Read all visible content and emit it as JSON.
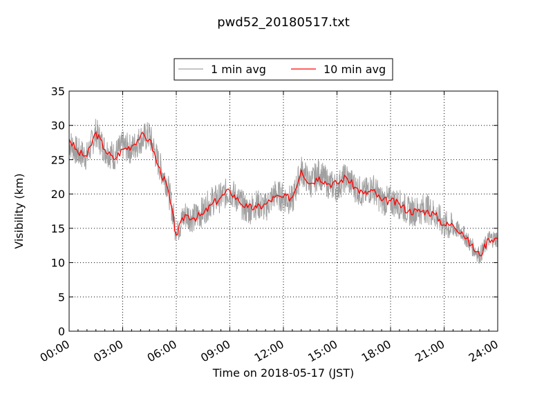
{
  "chart_data": {
    "type": "line",
    "title": "pwd52_20180517.txt",
    "xlabel": "Time on 2018-05-17 (JST)",
    "ylabel": "Visibility (km)",
    "xlim": [
      "00:00",
      "24:00"
    ],
    "ylim": [
      0,
      35
    ],
    "grid": true,
    "legend_position": "top-center",
    "x_ticks": [
      "00:00",
      "03:00",
      "06:00",
      "09:00",
      "12:00",
      "15:00",
      "18:00",
      "21:00",
      "24:00"
    ],
    "y_ticks": [
      "0",
      "5",
      "10",
      "15",
      "20",
      "25",
      "30",
      "35"
    ],
    "x": [
      "00:00",
      "00:30",
      "01:00",
      "01:30",
      "02:00",
      "02:30",
      "03:00",
      "03:30",
      "04:00",
      "04:30",
      "05:00",
      "05:30",
      "06:00",
      "06:30",
      "07:00",
      "07:30",
      "08:00",
      "08:30",
      "09:00",
      "09:30",
      "10:00",
      "10:30",
      "11:00",
      "11:30",
      "12:00",
      "12:30",
      "13:00",
      "13:30",
      "14:00",
      "14:30",
      "15:00",
      "15:30",
      "16:00",
      "16:30",
      "17:00",
      "17:30",
      "18:00",
      "18:30",
      "19:00",
      "19:30",
      "20:00",
      "20:30",
      "21:00",
      "21:30",
      "22:00",
      "22:30",
      "23:00",
      "23:30",
      "24:00"
    ],
    "series": [
      {
        "name": "1 min avg",
        "color": "#a0a0a0",
        "values": [
          27.5,
          26.0,
          25.5,
          29.0,
          26.5,
          25.5,
          27.0,
          26.5,
          28.0,
          28.5,
          24.5,
          21.5,
          14.5,
          17.0,
          16.5,
          17.5,
          19.0,
          19.5,
          20.5,
          19.0,
          17.5,
          18.5,
          18.0,
          20.0,
          19.5,
          19.0,
          23.5,
          21.5,
          23.0,
          21.5,
          21.0,
          22.5,
          21.0,
          20.0,
          21.0,
          19.0,
          19.0,
          18.5,
          17.5,
          17.5,
          18.0,
          17.0,
          15.5,
          15.0,
          14.5,
          12.5,
          11.0,
          13.5,
          13.5
        ]
      },
      {
        "name": "10 min avg",
        "color": "#ff0000",
        "values": [
          28.0,
          26.0,
          25.5,
          29.0,
          26.5,
          25.0,
          26.5,
          27.0,
          28.5,
          28.0,
          24.0,
          21.0,
          14.0,
          17.0,
          16.5,
          17.0,
          18.5,
          19.5,
          20.5,
          19.0,
          18.0,
          18.0,
          18.5,
          19.5,
          19.5,
          19.5,
          23.5,
          21.5,
          22.5,
          21.5,
          21.5,
          22.5,
          21.0,
          20.0,
          20.5,
          19.0,
          19.0,
          18.5,
          17.5,
          17.5,
          17.5,
          17.0,
          15.5,
          15.5,
          14.5,
          12.5,
          11.0,
          13.5,
          13.5
        ]
      }
    ]
  }
}
